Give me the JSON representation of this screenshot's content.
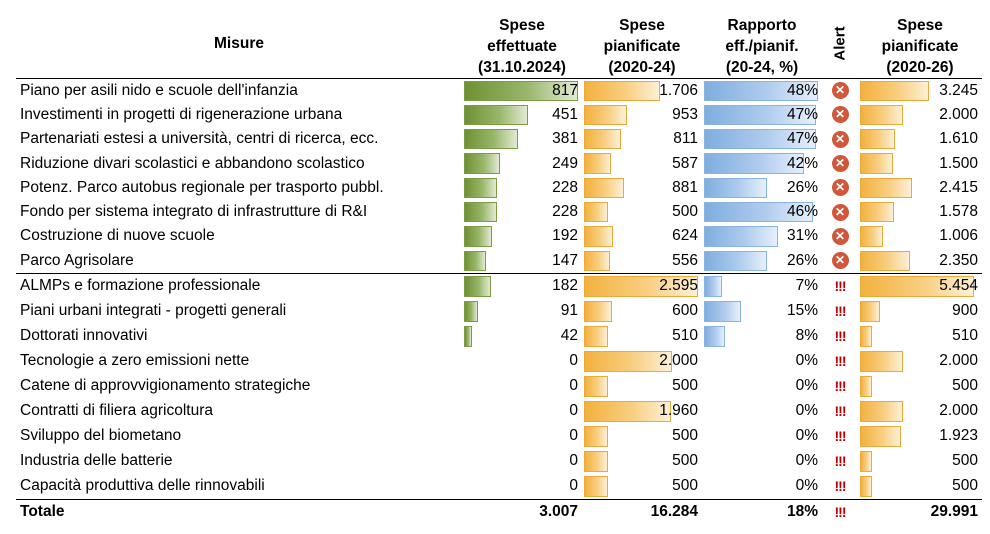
{
  "headers": {
    "measure": "Misure",
    "spent": [
      "Spese",
      "effettuate",
      "(31.10.2024)"
    ],
    "planned24": [
      "Spese",
      "pianificate",
      "(2020-24)"
    ],
    "ratio": [
      "Rapporto",
      "eff./pianif.",
      "(20-24, %)"
    ],
    "alert": "Alert",
    "planned26": [
      "Spese",
      "pianificate",
      "(2020-26)"
    ]
  },
  "rows": [
    {
      "name": "Piano per asili nido e scuole dell'infanzia",
      "spent": "817",
      "planned24": "1.706",
      "ratio": "48%",
      "alert": "x",
      "planned26": "3.245"
    },
    {
      "name": "Investimenti in progetti di rigenerazione urbana",
      "spent": "451",
      "planned24": "953",
      "ratio": "47%",
      "alert": "x",
      "planned26": "2.000"
    },
    {
      "name": "Partenariati estesi a università, centri di ricerca, ecc.",
      "spent": "381",
      "planned24": "811",
      "ratio": "47%",
      "alert": "x",
      "planned26": "1.610"
    },
    {
      "name": "Riduzione divari scolastici e abbandono scolastico",
      "spent": "249",
      "planned24": "587",
      "ratio": "42%",
      "alert": "x",
      "planned26": "1.500"
    },
    {
      "name": "Potenz. Parco autobus regionale per trasporto pubbl.",
      "spent": "228",
      "planned24": "881",
      "ratio": "26%",
      "alert": "x",
      "planned26": "2.415"
    },
    {
      "name": "Fondo per sistema integrato di infrastrutture di R&I",
      "spent": "228",
      "planned24": "500",
      "ratio": "46%",
      "alert": "x",
      "planned26": "1.578"
    },
    {
      "name": "Costruzione di nuove scuole",
      "spent": "192",
      "planned24": "624",
      "ratio": "31%",
      "alert": "x",
      "planned26": "1.006"
    },
    {
      "name": "Parco Agrisolare",
      "spent": "147",
      "planned24": "556",
      "ratio": "26%",
      "alert": "x",
      "planned26": "2.350"
    },
    {
      "name": "ALMPs e formazione professionale",
      "spent": "182",
      "planned24": "2.595",
      "ratio": "7%",
      "alert": "!!!",
      "planned26": "5.454"
    },
    {
      "name": "Piani urbani integrati - progetti generali",
      "spent": "91",
      "planned24": "600",
      "ratio": "15%",
      "alert": "!!!",
      "planned26": "900"
    },
    {
      "name": "Dottorati innovativi",
      "spent": "42",
      "planned24": "510",
      "ratio": "8%",
      "alert": "!!!",
      "planned26": "510"
    },
    {
      "name": "Tecnologie a zero emissioni nette",
      "spent": "0",
      "planned24": "2.000",
      "ratio": "0%",
      "alert": "!!!",
      "planned26": "2.000"
    },
    {
      "name": "Catene di approvvigionamento strategiche",
      "spent": "0",
      "planned24": "500",
      "ratio": "0%",
      "alert": "!!!",
      "planned26": "500"
    },
    {
      "name": "Contratti di filiera agricoltura",
      "spent": "0",
      "planned24": "1.960",
      "ratio": "0%",
      "alert": "!!!",
      "planned26": "2.000"
    },
    {
      "name": "Sviluppo del biometano",
      "spent": "0",
      "planned24": "500",
      "ratio": "0%",
      "alert": "!!!",
      "planned26": "1.923"
    },
    {
      "name": "Industria delle batterie",
      "spent": "0",
      "planned24": "500",
      "ratio": "0%",
      "alert": "!!!",
      "planned26": "500"
    },
    {
      "name": "Capacità produttiva delle rinnovabili",
      "spent": "0",
      "planned24": "500",
      "ratio": "0%",
      "alert": "!!!",
      "planned26": "500"
    }
  ],
  "total": {
    "name": "Totale",
    "spent": "3.007",
    "planned24": "16.284",
    "ratio": "18%",
    "alert": "!!!",
    "planned26": "29.991"
  },
  "colors": {
    "green": "#6f9133",
    "orange": "#f3b13e",
    "blue": "#7faedf",
    "alert_x": "#d0573a",
    "alert_bang": "#c00000"
  },
  "icons": {
    "x": "x-circle-icon",
    "bang": "triple-exclamation-icon"
  }
}
